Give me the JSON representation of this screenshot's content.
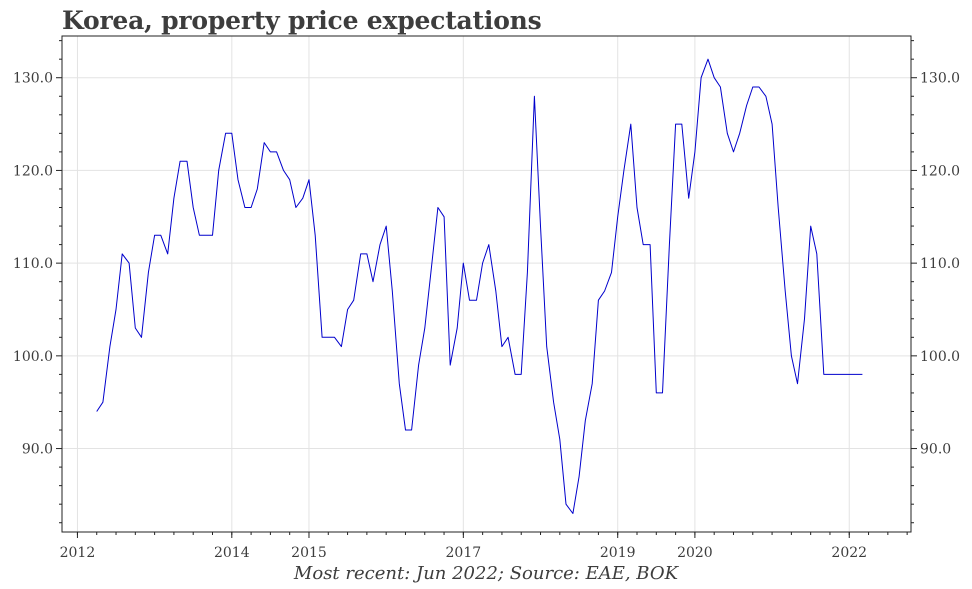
{
  "title": "Korea, property price expectations",
  "footnote": "Most recent: Jun 2022; Source: EAE, BOK",
  "chart_data": {
    "type": "line",
    "title": "Korea, property price expectations",
    "xlabel": "",
    "ylabel": "",
    "xlim": [
      2011.8,
      2022.8
    ],
    "ylim": [
      81,
      134.5
    ],
    "x_tick_labels": [
      "2012",
      "2014",
      "2015",
      "2017",
      "2019",
      "2020",
      "2022"
    ],
    "x_tick_values": [
      2012.0,
      2014.0,
      2015.0,
      2017.0,
      2019.0,
      2020.0,
      2022.0
    ],
    "y_ticks": [
      90,
      100,
      110,
      120,
      130
    ],
    "y_tick_labels": [
      "90.0",
      "100.0",
      "110.0",
      "120.0",
      "130.0"
    ],
    "grid": true,
    "line_color": "#0000cc",
    "series": [
      {
        "x": [
          2012.25,
          2012.33,
          2012.42,
          2012.5,
          2012.58,
          2012.67,
          2012.75,
          2012.83,
          2012.92,
          2013.0,
          2013.08,
          2013.17,
          2013.25,
          2013.33,
          2013.42,
          2013.5,
          2013.58,
          2013.67,
          2013.75,
          2013.83,
          2013.92,
          2014.0,
          2014.08,
          2014.17,
          2014.25,
          2014.33,
          2014.42,
          2014.5,
          2014.58,
          2014.67,
          2014.75,
          2014.83,
          2014.92,
          2015.0,
          2015.08,
          2015.17,
          2015.25,
          2015.33,
          2015.42,
          2015.5,
          2015.58,
          2015.67,
          2015.75,
          2015.83,
          2015.92,
          2016.0,
          2016.08,
          2016.17,
          2016.25,
          2016.33,
          2016.42,
          2016.5,
          2016.58,
          2016.67,
          2016.75,
          2016.83,
          2016.92,
          2017.0,
          2017.08,
          2017.17,
          2017.25,
          2017.33,
          2017.42,
          2017.5,
          2017.58,
          2017.67,
          2017.75,
          2017.83,
          2017.92,
          2018.0,
          2018.08,
          2018.17,
          2018.25,
          2018.33,
          2018.42,
          2018.5,
          2018.58,
          2018.67,
          2018.75,
          2018.83,
          2018.92,
          2019.0,
          2019.08,
          2019.17,
          2019.25,
          2019.33,
          2019.42,
          2019.5,
          2019.58,
          2019.67,
          2019.75,
          2019.83,
          2019.92,
          2020.0,
          2020.08,
          2020.17,
          2020.25,
          2020.33,
          2020.42,
          2020.5,
          2020.58,
          2020.67,
          2020.75,
          2020.83,
          2020.92,
          2021.0,
          2021.08,
          2021.17,
          2021.25,
          2021.33,
          2021.42,
          2021.5,
          2021.58,
          2021.67,
          2021.75,
          2021.83,
          2021.92,
          2022.0,
          2022.08,
          2022.17
        ],
        "values": [
          94,
          95,
          101,
          105,
          111,
          110,
          103,
          102,
          109,
          113,
          113,
          111,
          117,
          121,
          121,
          116,
          113,
          113,
          113,
          120,
          124,
          124,
          119,
          116,
          116,
          118,
          123,
          122,
          122,
          120,
          119,
          116,
          117,
          119,
          113,
          102,
          102,
          102,
          101,
          105,
          106,
          111,
          111,
          108,
          112,
          114,
          107,
          97,
          92,
          92,
          99,
          103,
          109,
          116,
          115,
          99,
          103,
          110,
          106,
          106,
          110,
          112,
          107,
          101,
          102,
          98,
          98,
          109,
          128,
          114,
          101,
          95,
          91,
          84,
          83,
          87,
          93,
          97,
          106,
          107,
          109,
          115,
          120,
          125,
          116,
          112,
          112,
          96,
          96,
          112,
          125,
          125,
          117,
          122,
          130,
          132,
          130,
          129,
          124,
          122,
          124,
          127,
          129,
          129,
          128,
          125,
          116,
          107,
          100,
          97,
          104,
          114,
          111,
          98,
          98,
          98,
          98,
          98,
          98,
          98
        ]
      }
    ]
  }
}
